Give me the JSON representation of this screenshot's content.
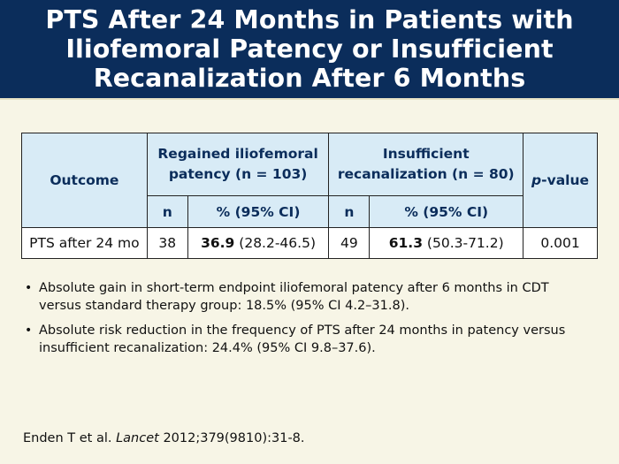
{
  "title": {
    "line1": "PTS After 24 Months in Patients with",
    "line2": "Iliofemoral Patency or Insufficient",
    "line3": "Recanalization After 6 Months"
  },
  "table": {
    "outcome_header": "Outcome",
    "group1_line1": "Regained iliofemoral",
    "group1_line2": "patency (n = 103)",
    "group2_line1": "Insufficient",
    "group2_line2": "recanalization (n = 80)",
    "n_header": "n",
    "pct_header": "% (95% CI)",
    "pvalue_p": "p",
    "pvalue_rest": "-value",
    "row": {
      "outcome": "PTS after 24 mo",
      "g1_n": "38",
      "g1_pct": "36.9",
      "g1_ci": "(28.2-46.5)",
      "g2_n": "49",
      "g2_pct": "61.3",
      "g2_ci": "(50.3-71.2)",
      "pvalue": "0.001"
    }
  },
  "bullets": [
    {
      "line1": "Absolute gain in short-term endpoint iliofemoral patency after 6 months in CDT",
      "line2": "versus standard therapy group: 18.5% (95% CI 4.2–31.8)."
    },
    {
      "line1": "Absolute risk reduction in the frequency of PTS after 24 months in patency versus",
      "line2": "insufficient recanalization: 24.4% (95% CI 9.8–37.6)."
    }
  ],
  "citation": {
    "authors": "Enden T et al.",
    "journal": "Lancet",
    "details": "2012;379(9810):31-8."
  },
  "colors": {
    "header_bg": "#0b2d5b",
    "page_bg": "#f7f5e6",
    "table_header_bg": "#d8ebf6"
  }
}
